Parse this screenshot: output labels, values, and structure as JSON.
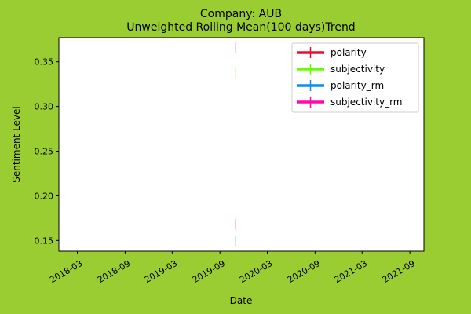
{
  "colors": {
    "figure_bg": "#9acd32",
    "axes_bg": "#ffffff"
  },
  "chart_data": {
    "type": "line",
    "title": "Company: AUB",
    "subtitle": "Unweighted Rolling Mean(100 days)Trend",
    "xlabel": "Date",
    "ylabel": "Sentiment Level",
    "x_ticks": [
      "2018-03",
      "2018-09",
      "2019-03",
      "2019-09",
      "2020-03",
      "2020-09",
      "2021-03",
      "2021-09"
    ],
    "y_ticks": [
      "0.15",
      "0.20",
      "0.25",
      "0.30",
      "0.35"
    ],
    "xlim": [
      "2017-12-20",
      "2021-10-25"
    ],
    "ylim": [
      0.138,
      0.377
    ],
    "grid": false,
    "legend_position": "upper-right",
    "series": [
      {
        "name": "polarity",
        "color": "#e8102e",
        "x": [
          "2019-11-01"
        ],
        "y": [
          0.168
        ],
        "err": 0.006
      },
      {
        "name": "subjectivity",
        "color": "#66ff00",
        "x": [
          "2019-11-01"
        ],
        "y": [
          0.338
        ],
        "err": 0.006
      },
      {
        "name": "polarity_rm",
        "color": "#0a8fe8",
        "x": [
          "2019-11-01"
        ],
        "y": [
          0.149
        ],
        "err": 0.006
      },
      {
        "name": "subjectivity_rm",
        "color": "#ff0aaa",
        "x": [
          "2019-11-01"
        ],
        "y": [
          0.366
        ],
        "err": 0.006
      }
    ]
  }
}
